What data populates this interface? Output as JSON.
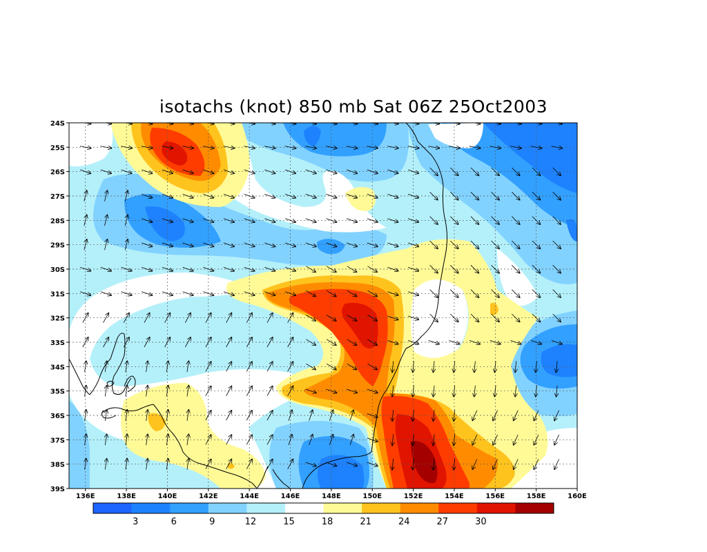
{
  "title": "isotachs (knot) 850 mb Sat 06Z 25Oct2003",
  "lat_labels": [
    "24S",
    "25S",
    "26S",
    "27S",
    "28S",
    "29S",
    "30S",
    "31S",
    "32S",
    "33S",
    "34S",
    "35S",
    "36S",
    "37S",
    "38S",
    "39S"
  ],
  "lon_labels": [
    "136E",
    "138E",
    "140E",
    "142E",
    "144E",
    "146E",
    "148E",
    "150E",
    "152E",
    "154E",
    "156E",
    "158E",
    "160E"
  ],
  "colorbar": {
    "colors": [
      "#1e64ff",
      "#1e82ff",
      "#32a0ff",
      "#82d2ff",
      "#b4f0fa",
      "#ffffff",
      "#fffa96",
      "#ffc31e",
      "#ff8c00",
      "#ff3c00",
      "#e11400",
      "#a50000"
    ],
    "labels": [
      "3",
      "6",
      "9",
      "12",
      "15",
      "18",
      "21",
      "24",
      "27",
      "30"
    ]
  },
  "level_colors": {
    "lt3": "#1e64ff",
    "3_6": "#1e82ff",
    "6_9": "#32a0ff",
    "9_12": "#82d2ff",
    "12_15": "#b4f0fa",
    "15_18": "#ffffff",
    "18_21": "#fffa96",
    "21_24": "#ffc31e",
    "24_27": "#ff8c00",
    "27_30": "#ff3c00",
    "30_33": "#e11400",
    "gt33": "#a50000"
  },
  "speed_field": {
    "description_units": "knots",
    "core_features": [
      {
        "name": "max-jet-nw",
        "lon": 140.3,
        "lat": -25.5,
        "speed": 30
      },
      {
        "name": "max-jet-central",
        "lon": 149.7,
        "lat": -32.5,
        "speed": 30
      },
      {
        "name": "max-jet-south",
        "lon": 152.6,
        "lat": -38.0,
        "speed": 33
      },
      {
        "name": "min-east",
        "lon": 158.8,
        "lat": -34.0,
        "speed": 6
      },
      {
        "name": "min-west",
        "lon": 139.8,
        "lat": -28.3,
        "speed": 6
      },
      {
        "name": "min-south",
        "lon": 148.7,
        "lat": -38.5,
        "speed": 3
      }
    ]
  }
}
